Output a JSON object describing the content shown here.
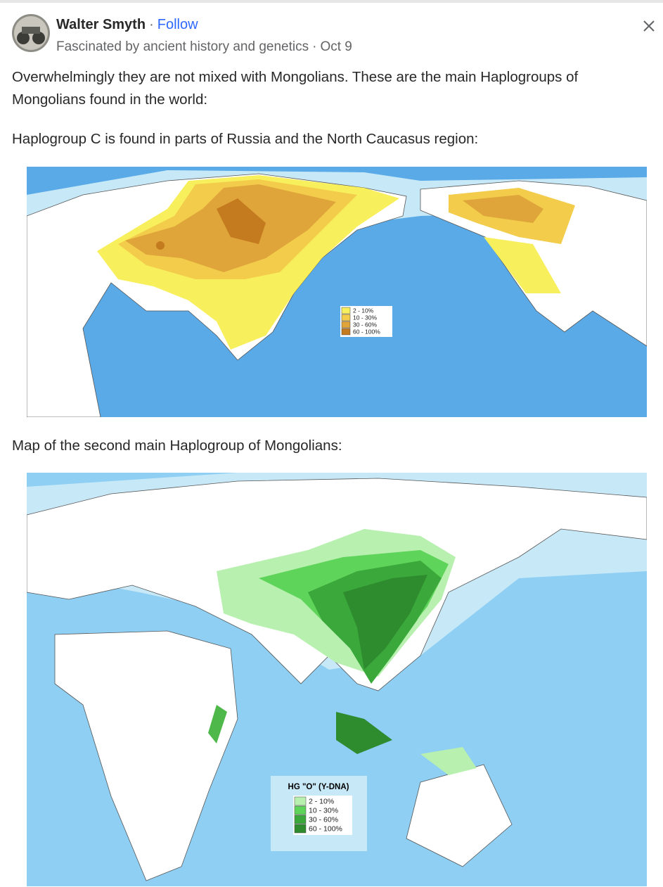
{
  "post": {
    "author": "Walter Smyth",
    "separator": "·",
    "follow": "Follow",
    "credential": "Fascinated by ancient history and genetics",
    "date": "Oct 9",
    "paragraphs": [
      "Overwhelmingly they are not mixed with Mongolians. These are the main Haplogroups of Mongolians found in the world:",
      "Haplogroup C is found in parts of Russia and the North Caucasus region:",
      "Map of the second main Haplogroup of Mongolians:"
    ],
    "maps": [
      {
        "legend": [
          "2 - 10%",
          "10 - 30%",
          "30 - 60%",
          "60 - 100%"
        ]
      },
      {
        "legend_title": "HG \"O\" (Y-DNA)",
        "legend": [
          "2 - 10%",
          "10 - 30%",
          "30 - 60%",
          "60 - 100%"
        ]
      }
    ]
  }
}
